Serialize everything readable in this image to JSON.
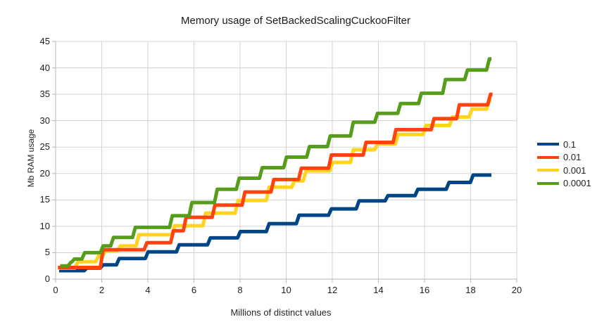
{
  "window": {
    "background": "#ffffff"
  },
  "chart_data": {
    "type": "line",
    "subtype": "step",
    "title": "Memory usage of SetBackedScalingCuckooFilter",
    "xlabel": "Millions of distinct values",
    "ylabel": "Mb RAM usage",
    "xlim": [
      0,
      20
    ],
    "ylim": [
      0,
      45
    ],
    "x_ticks": [
      0,
      2,
      4,
      6,
      8,
      10,
      12,
      14,
      16,
      18,
      20
    ],
    "y_ticks": [
      0,
      5,
      10,
      15,
      20,
      25,
      30,
      35,
      40,
      45
    ],
    "grid": true,
    "grid_color": "#d3d3d3",
    "axis_color": "#b5b5b5",
    "legend_position": "right",
    "legend": [
      "0.1",
      "0.01",
      "0.001",
      "0.0001"
    ],
    "series": [
      {
        "name": "0.1",
        "color": "#004586",
        "z": 1,
        "x_end": 18.9,
        "points": [
          [
            0.15,
            1.6
          ],
          [
            1.3,
            2.1
          ],
          [
            2.0,
            2.7
          ],
          [
            2.7,
            3.9
          ],
          [
            3.95,
            5.15
          ],
          [
            5.3,
            6.5
          ],
          [
            6.65,
            7.8
          ],
          [
            7.95,
            9.0
          ],
          [
            9.2,
            10.5
          ],
          [
            10.5,
            12.1
          ],
          [
            11.9,
            13.3
          ],
          [
            13.1,
            14.8
          ],
          [
            14.35,
            15.8
          ],
          [
            15.65,
            17.0
          ],
          [
            17.0,
            18.3
          ],
          [
            18.05,
            19.7
          ]
        ]
      },
      {
        "name": "0.01",
        "color": "#ff420e",
        "z": 3,
        "x_end": 18.95,
        "points": [
          [
            0.1,
            2.2
          ],
          [
            2.0,
            5.55
          ],
          [
            3.9,
            6.9
          ],
          [
            5.05,
            9.15
          ],
          [
            5.6,
            11.7
          ],
          [
            6.85,
            14.0
          ],
          [
            8.15,
            16.5
          ],
          [
            9.4,
            18.85
          ],
          [
            10.6,
            21.0
          ],
          [
            11.9,
            23.5
          ],
          [
            13.4,
            25.9
          ],
          [
            14.7,
            28.3
          ],
          [
            16.35,
            30.4
          ],
          [
            17.45,
            33.0
          ],
          [
            18.8,
            35.0
          ]
        ]
      },
      {
        "name": "0.001",
        "color": "#ffd320",
        "z": 2,
        "x_end": 18.9,
        "points": [
          [
            0.1,
            2.1
          ],
          [
            0.9,
            3.3
          ],
          [
            1.8,
            4.35
          ],
          [
            2.1,
            5.4
          ],
          [
            2.75,
            6.3
          ],
          [
            3.55,
            8.4
          ],
          [
            5.1,
            10.1
          ],
          [
            6.45,
            12.5
          ],
          [
            7.85,
            14.9
          ],
          [
            9.2,
            17.4
          ],
          [
            10.3,
            18.6
          ],
          [
            10.8,
            20.5
          ],
          [
            11.95,
            22.1
          ],
          [
            12.85,
            24.5
          ],
          [
            13.9,
            25.6
          ],
          [
            14.8,
            27.4
          ],
          [
            16.0,
            29.1
          ],
          [
            17.15,
            30.7
          ],
          [
            18.0,
            32.2
          ],
          [
            18.75,
            33.9
          ]
        ]
      },
      {
        "name": "0.0001",
        "color": "#579d1c",
        "z": 4,
        "x_end": 18.9,
        "points": [
          [
            0.2,
            2.5
          ],
          [
            0.6,
            3.2
          ],
          [
            0.75,
            3.8
          ],
          [
            1.2,
            5.0
          ],
          [
            2.0,
            6.3
          ],
          [
            2.45,
            7.9
          ],
          [
            3.4,
            9.8
          ],
          [
            5.0,
            12.0
          ],
          [
            5.85,
            14.5
          ],
          [
            6.95,
            17.0
          ],
          [
            7.9,
            19.1
          ],
          [
            8.9,
            21.1
          ],
          [
            9.95,
            23.1
          ],
          [
            10.95,
            25.1
          ],
          [
            11.85,
            27.1
          ],
          [
            12.85,
            29.7
          ],
          [
            13.9,
            31.4
          ],
          [
            14.9,
            33.25
          ],
          [
            15.8,
            35.2
          ],
          [
            16.85,
            37.8
          ],
          [
            17.8,
            39.6
          ],
          [
            18.75,
            41.7
          ]
        ]
      }
    ]
  }
}
